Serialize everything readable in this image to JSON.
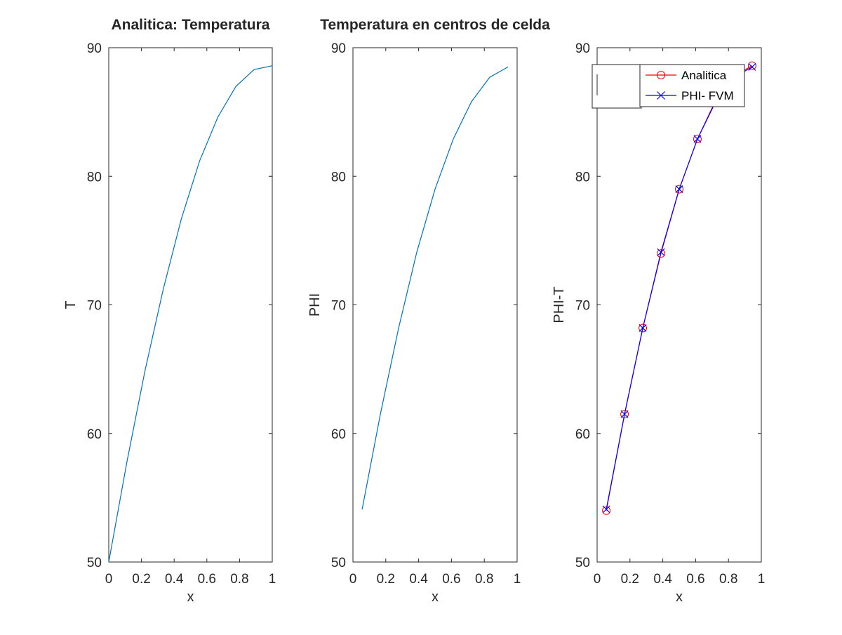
{
  "chart_data": [
    {
      "type": "line",
      "title": "Analitica: Temperatura",
      "xlabel": "x",
      "ylabel": "T",
      "xlim": [
        0,
        1
      ],
      "ylim": [
        50,
        90
      ],
      "xticks": [
        0,
        0.2,
        0.4,
        0.6,
        0.8,
        1
      ],
      "xtick_labels": [
        "0",
        "0.2",
        "0.4",
        "0.6",
        "0.8",
        "1"
      ],
      "yticks": [
        50,
        60,
        70,
        80,
        90
      ],
      "ytick_labels": [
        "50",
        "60",
        "70",
        "80",
        "90"
      ],
      "grid": false,
      "series": [
        {
          "color": "#0072bd",
          "x": [
            0,
            0.111,
            0.222,
            0.333,
            0.444,
            0.556,
            0.667,
            0.778,
            0.889,
            1.0
          ],
          "y": [
            50.0,
            57.8,
            64.9,
            71.2,
            76.7,
            81.2,
            84.6,
            87.0,
            88.3,
            88.6
          ]
        }
      ]
    },
    {
      "type": "line",
      "title": "Temperatura en centros de celda",
      "xlabel": "x",
      "ylabel": "PHI",
      "xlim": [
        0,
        1
      ],
      "ylim": [
        50,
        90
      ],
      "xticks": [
        0,
        0.2,
        0.4,
        0.6,
        0.8,
        1
      ],
      "xtick_labels": [
        "0",
        "0.2",
        "0.4",
        "0.6",
        "0.8",
        "1"
      ],
      "yticks": [
        50,
        60,
        70,
        80,
        90
      ],
      "ytick_labels": [
        "50",
        "60",
        "70",
        "80",
        "90"
      ],
      "grid": false,
      "series": [
        {
          "color": "#0072bd",
          "x": [
            0.056,
            0.167,
            0.278,
            0.389,
            0.5,
            0.611,
            0.722,
            0.833,
            0.944
          ],
          "y": [
            54.1,
            61.5,
            68.2,
            74.1,
            79.0,
            82.9,
            85.8,
            87.7,
            88.5
          ]
        }
      ]
    },
    {
      "type": "line",
      "title": "",
      "xlabel": "x",
      "ylabel": "PHI-T",
      "xlim": [
        0,
        1
      ],
      "ylim": [
        50,
        90
      ],
      "xticks": [
        0,
        0.2,
        0.4,
        0.6,
        0.8,
        1
      ],
      "xtick_labels": [
        "0",
        "0.2",
        "0.4",
        "0.6",
        "0.8",
        "1"
      ],
      "yticks": [
        50,
        60,
        70,
        80,
        90
      ],
      "ytick_labels": [
        "50",
        "60",
        "70",
        "80",
        "90"
      ],
      "grid": false,
      "legend_position": "top-right",
      "series": [
        {
          "name": "Analitica",
          "color": "#ff0000",
          "marker": "circle",
          "x": [
            0.056,
            0.167,
            0.278,
            0.389,
            0.5,
            0.611,
            0.722,
            0.833,
            0.944
          ],
          "y": [
            54.0,
            61.5,
            68.2,
            74.0,
            79.0,
            82.9,
            85.9,
            87.8,
            88.6
          ]
        },
        {
          "name": "PHI- FVM",
          "color": "#0000ff",
          "marker": "x",
          "x": [
            0.056,
            0.167,
            0.278,
            0.389,
            0.5,
            0.611,
            0.722,
            0.833,
            0.944
          ],
          "y": [
            54.1,
            61.5,
            68.2,
            74.1,
            79.0,
            82.9,
            85.8,
            87.7,
            88.5
          ]
        }
      ]
    }
  ]
}
